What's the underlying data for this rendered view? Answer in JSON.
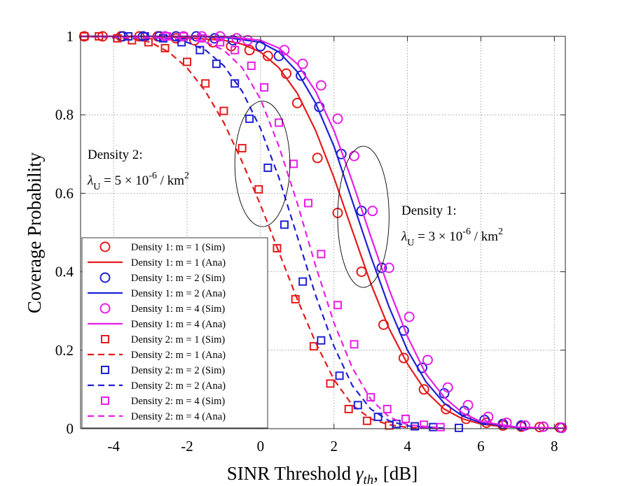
{
  "chart_data": {
    "type": "line",
    "title": "",
    "xlabel": "SINR Threshold",
    "xlabel_symbol": "γ",
    "xlabel_subscript": "th",
    "xlabel_unit": ", [dB]",
    "ylabel": "Coverage Probability",
    "xlim": [
      -4.9,
      8.3
    ],
    "ylim": [
      0,
      1
    ],
    "xticks": [
      -4,
      -2,
      0,
      2,
      4,
      6,
      8
    ],
    "yticks": [
      0,
      0.2,
      0.4,
      0.6,
      0.8,
      1
    ],
    "xtick_labels": [
      "-4",
      "-2",
      "0",
      "2",
      "4",
      "6",
      "8"
    ],
    "ytick_labels": [
      "0",
      "0.2",
      "0.4",
      "0.6",
      "0.8",
      "1"
    ],
    "grid": true,
    "legend_position": "bottom-left",
    "series": [
      {
        "name": "Density 1: m = 1 (Sim)",
        "color": "#e41a1c",
        "marker": "circle",
        "line": "none",
        "x": [
          -4.8,
          -4.3,
          -3.8,
          -3.3,
          -2.8,
          -2.3,
          -1.8,
          -1.3,
          -0.8,
          -0.3,
          0.2,
          0.7,
          1.0,
          1.55,
          2.1,
          2.75,
          3.35,
          3.9,
          4.45,
          5.05,
          5.6,
          6.15,
          6.6,
          7.1,
          7.6,
          8.15
        ],
        "y": [
          1,
          1,
          1,
          1,
          1,
          0.995,
          0.99,
          0.985,
          0.975,
          0.965,
          0.95,
          0.905,
          0.83,
          0.69,
          0.55,
          0.4,
          0.265,
          0.18,
          0.1,
          0.05,
          0.025,
          0.015,
          0.008,
          0.005,
          0.004,
          0.003
        ]
      },
      {
        "name": "Density 1: m = 1 (Ana)",
        "color": "#e41a1c",
        "line": "solid",
        "x": [
          -4.9,
          -3,
          -2,
          -1,
          -0.5,
          0,
          0.5,
          1,
          1.5,
          2,
          2.5,
          3,
          3.5,
          4,
          4.5,
          5,
          5.5,
          6,
          6.5,
          7,
          8,
          8.3
        ],
        "y": [
          1,
          1,
          0.996,
          0.99,
          0.98,
          0.96,
          0.92,
          0.855,
          0.76,
          0.64,
          0.505,
          0.37,
          0.255,
          0.165,
          0.095,
          0.05,
          0.025,
          0.012,
          0.006,
          0.003,
          0.001,
          0.001
        ]
      },
      {
        "name": "Density 1: m = 2 (Sim)",
        "color": "#1f1fd6",
        "marker": "circle",
        "line": "none",
        "x": [
          -3.75,
          -3.2,
          -2.75,
          -2.3,
          -1.75,
          -1.25,
          -0.75,
          0.0,
          0.5,
          1.1,
          1.6,
          2.2,
          2.75,
          3.3,
          3.9,
          4.4,
          5.0,
          5.55,
          6.1,
          6.6,
          7.1,
          7.7,
          8.2
        ],
        "y": [
          1,
          1,
          1,
          1,
          1,
          0.995,
          0.99,
          0.975,
          0.95,
          0.9,
          0.82,
          0.7,
          0.555,
          0.41,
          0.25,
          0.155,
          0.09,
          0.045,
          0.022,
          0.012,
          0.008,
          0.005,
          0.002
        ]
      },
      {
        "name": "Density 1: m = 2 (Ana)",
        "color": "#1f1fd6",
        "line": "solid",
        "x": [
          -4.9,
          -2,
          -1,
          0,
          0.5,
          1,
          1.5,
          2,
          2.5,
          3,
          3.5,
          4,
          4.5,
          5,
          5.5,
          6,
          7,
          8.3
        ],
        "y": [
          1,
          1,
          0.998,
          0.985,
          0.96,
          0.91,
          0.83,
          0.72,
          0.58,
          0.44,
          0.31,
          0.2,
          0.12,
          0.065,
          0.032,
          0.015,
          0.003,
          0.001
        ]
      },
      {
        "name": "Density 1: m = 4 (Sim)",
        "color": "#e81ee8",
        "marker": "circle",
        "line": "none",
        "x": [
          -2.6,
          -2.1,
          -1.6,
          -1.1,
          -0.65,
          -0.35,
          0.65,
          1.15,
          1.65,
          2.1,
          2.55,
          3.05,
          3.5,
          4.05,
          4.55,
          5.1,
          5.65,
          6.2,
          6.7,
          7.2,
          7.7,
          8.2
        ],
        "y": [
          1,
          1,
          1,
          1,
          0.995,
          0.99,
          0.965,
          0.93,
          0.875,
          0.79,
          0.695,
          0.555,
          0.41,
          0.285,
          0.175,
          0.105,
          0.06,
          0.03,
          0.015,
          0.008,
          0.005,
          0.003
        ]
      },
      {
        "name": "Density 1: m = 4 (Ana)",
        "color": "#e81ee8",
        "line": "solid",
        "x": [
          -4.9,
          -1,
          0,
          0.5,
          1,
          1.5,
          2,
          2.5,
          3,
          3.5,
          4,
          4.5,
          5,
          5.5,
          6,
          7,
          8.3
        ],
        "y": [
          1,
          1,
          0.99,
          0.97,
          0.93,
          0.86,
          0.76,
          0.63,
          0.49,
          0.355,
          0.235,
          0.14,
          0.08,
          0.04,
          0.018,
          0.004,
          0.001
        ]
      },
      {
        "name": "Density 2: m = 1 (Sim)",
        "color": "#e41a1c",
        "marker": "square",
        "line": "none",
        "x": [
          -4.8,
          -4.4,
          -3.9,
          -3.5,
          -3.05,
          -2.6,
          -2.0,
          -1.5,
          -1.0,
          -0.5,
          -0.05,
          0.45,
          0.95,
          1.45,
          1.9,
          2.4,
          2.9,
          3.5
        ],
        "y": [
          1,
          1,
          0.995,
          0.99,
          0.985,
          0.97,
          0.935,
          0.88,
          0.81,
          0.715,
          0.61,
          0.46,
          0.33,
          0.21,
          0.115,
          0.05,
          0.02,
          0.008
        ]
      },
      {
        "name": "Density 2: m = 1 (Ana)",
        "color": "#e41a1c",
        "line": "dashed",
        "x": [
          -4.9,
          -3.5,
          -3,
          -2.5,
          -2,
          -1.5,
          -1,
          -0.5,
          0,
          0.5,
          1,
          1.5,
          2,
          2.5,
          3,
          3.5,
          4,
          5
        ],
        "y": [
          1,
          0.995,
          0.985,
          0.96,
          0.92,
          0.86,
          0.78,
          0.68,
          0.57,
          0.45,
          0.33,
          0.22,
          0.125,
          0.06,
          0.025,
          0.01,
          0.003,
          0.001
        ]
      },
      {
        "name": "Density 2: m = 2 (Sim)",
        "color": "#1f1fd6",
        "marker": "square",
        "line": "none",
        "x": [
          -3.6,
          -3.15,
          -2.65,
          -2.15,
          -1.65,
          -1.2,
          -0.7,
          -0.3,
          0.2,
          0.65,
          1.15,
          1.65,
          2.15,
          2.65,
          3.2,
          3.7,
          4.2,
          4.7,
          5.4
        ],
        "y": [
          1,
          1,
          0.995,
          0.985,
          0.965,
          0.93,
          0.88,
          0.79,
          0.665,
          0.52,
          0.375,
          0.225,
          0.135,
          0.06,
          0.03,
          0.012,
          0.006,
          0.004,
          0.002
        ]
      },
      {
        "name": "Density 2: m = 2 (Ana)",
        "color": "#1f1fd6",
        "line": "dashed",
        "x": [
          -4.9,
          -2.5,
          -2,
          -1.5,
          -1,
          -0.5,
          0,
          0.5,
          1,
          1.5,
          2,
          2.5,
          3,
          3.5,
          4,
          5
        ],
        "y": [
          1,
          0.995,
          0.985,
          0.965,
          0.925,
          0.86,
          0.765,
          0.64,
          0.49,
          0.34,
          0.21,
          0.11,
          0.05,
          0.02,
          0.007,
          0.001
        ]
      },
      {
        "name": "Density 2: m = 4 (Sim)",
        "color": "#e81ee8",
        "marker": "square",
        "line": "none",
        "x": [
          -2.55,
          -2.1,
          -1.6,
          -1.1,
          -0.7,
          -0.25,
          0.1,
          0.5,
          0.9,
          1.3,
          1.65,
          2.1,
          2.55,
          3.0,
          3.45,
          3.95,
          4.45,
          4.9
        ],
        "y": [
          1,
          1,
          0.995,
          0.985,
          0.965,
          0.925,
          0.87,
          0.78,
          0.675,
          0.575,
          0.445,
          0.315,
          0.215,
          0.08,
          0.05,
          0.025,
          0.01,
          0.004
        ]
      },
      {
        "name": "Density 2: m = 4 (Ana)",
        "color": "#e81ee8",
        "line": "dashed",
        "x": [
          -4.9,
          -2,
          -1.5,
          -1,
          -0.5,
          0,
          0.5,
          1,
          1.5,
          2,
          2.5,
          3,
          3.5,
          4,
          5
        ],
        "y": [
          1,
          0.995,
          0.985,
          0.965,
          0.92,
          0.84,
          0.72,
          0.575,
          0.415,
          0.27,
          0.155,
          0.075,
          0.03,
          0.01,
          0.001
        ]
      }
    ],
    "annotations": [
      {
        "id": "density2",
        "line1": "Density 2:",
        "lambda": "λ",
        "sub": "U",
        "expr": " = 5 × 10",
        "exp": "-6",
        "unit": " / km",
        "unit_exp": "2"
      },
      {
        "id": "density1",
        "line1": "Density 1:",
        "lambda": "λ",
        "sub": "U",
        "expr": " = 3 × 10",
        "exp": "-6",
        "unit": " / km",
        "unit_exp": "2"
      }
    ],
    "ellipses": [
      {
        "cx": 0.05,
        "cy": 0.675,
        "rx": 0.75,
        "ry": 0.16
      },
      {
        "cx": 2.8,
        "cy": 0.54,
        "rx": 0.7,
        "ry": 0.18
      }
    ]
  }
}
